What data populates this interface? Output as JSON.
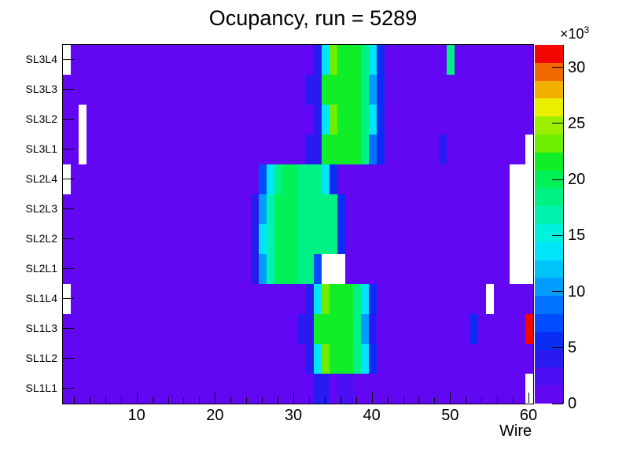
{
  "chart_data": {
    "type": "heatmap",
    "title": "Ocupancy, run = 5289",
    "xlabel": "Wire",
    "x_range": [
      1,
      60
    ],
    "x_major_ticks": [
      10,
      20,
      30,
      40,
      50,
      60
    ],
    "x_minor_tick_step": 2,
    "rows_top_to_bottom": [
      "SL3L4",
      "SL3L3",
      "SL3L2",
      "SL3L1",
      "SL2L4",
      "SL2L3",
      "SL2L2",
      "SL2L1",
      "SL1L4",
      "SL1L3",
      "SL1L2",
      "SL1L1"
    ],
    "z_axis": {
      "max": 32000,
      "tick_values": [
        0,
        5,
        10,
        15,
        20,
        25,
        30
      ],
      "multiplier_label": "×10",
      "multiplier_exp": "3"
    },
    "palette_20_levels_low_to_high": [
      "#6207f2",
      "#4a0ff2",
      "#2a1af2",
      "#0b2cf2",
      "#004cff",
      "#0072ff",
      "#009cff",
      "#00c4f8",
      "#00e6f8",
      "#00f2dc",
      "#00f2b0",
      "#00f284",
      "#00f058",
      "#0fee26",
      "#6fee00",
      "#9cee00",
      "#eaee00",
      "#f2b000",
      "#f26800",
      "#f20800"
    ],
    "background_value": 800,
    "empty_color": "#ffffff",
    "cell_runs_by_row": [
      {
        "label": "SL3L4",
        "runs": [
          [
            1,
            1,
            "empty"
          ],
          [
            33,
            33,
            4000
          ],
          [
            34,
            34,
            13600
          ],
          [
            35,
            35,
            23200
          ],
          [
            36,
            38,
            21600
          ],
          [
            39,
            39,
            18400
          ],
          [
            40,
            40,
            13600
          ],
          [
            41,
            41,
            5600
          ],
          [
            50,
            50,
            18400
          ]
        ]
      },
      {
        "label": "SL3L3",
        "runs": [
          [
            32,
            33,
            4000
          ],
          [
            34,
            38,
            21600
          ],
          [
            39,
            39,
            18400
          ],
          [
            40,
            40,
            10400
          ],
          [
            41,
            41,
            5600
          ]
        ]
      },
      {
        "label": "SL3L2",
        "runs": [
          [
            3,
            3,
            "empty"
          ],
          [
            33,
            33,
            4000
          ],
          [
            34,
            34,
            13600
          ],
          [
            35,
            35,
            23200
          ],
          [
            36,
            38,
            21600
          ],
          [
            39,
            39,
            18400
          ],
          [
            40,
            40,
            13600
          ],
          [
            41,
            41,
            5600
          ]
        ]
      },
      {
        "label": "SL3L1",
        "runs": [
          [
            3,
            3,
            "empty"
          ],
          [
            32,
            33,
            4000
          ],
          [
            34,
            38,
            21600
          ],
          [
            39,
            39,
            18400
          ],
          [
            40,
            40,
            8800
          ],
          [
            41,
            41,
            5600
          ],
          [
            49,
            49,
            4000
          ],
          [
            60,
            60,
            "empty"
          ]
        ]
      },
      {
        "label": "SL2L4",
        "runs": [
          [
            1,
            1,
            "empty"
          ],
          [
            26,
            26,
            7200
          ],
          [
            27,
            27,
            13600
          ],
          [
            28,
            28,
            18400
          ],
          [
            29,
            30,
            20000
          ],
          [
            31,
            33,
            18400
          ],
          [
            34,
            34,
            13600
          ],
          [
            35,
            35,
            5600
          ],
          [
            58,
            60,
            "empty"
          ]
        ]
      },
      {
        "label": "SL2L3",
        "runs": [
          [
            25,
            25,
            4000
          ],
          [
            26,
            26,
            10400
          ],
          [
            27,
            27,
            16800
          ],
          [
            28,
            30,
            20000
          ],
          [
            31,
            35,
            18400
          ],
          [
            36,
            36,
            5600
          ],
          [
            58,
            60,
            "empty"
          ]
        ]
      },
      {
        "label": "SL2L2",
        "runs": [
          [
            25,
            25,
            4000
          ],
          [
            26,
            26,
            13600
          ],
          [
            27,
            27,
            16800
          ],
          [
            28,
            30,
            20000
          ],
          [
            31,
            35,
            18400
          ],
          [
            36,
            36,
            5600
          ],
          [
            58,
            60,
            "empty"
          ]
        ]
      },
      {
        "label": "SL2L1",
        "runs": [
          [
            25,
            25,
            4000
          ],
          [
            26,
            26,
            10400
          ],
          [
            27,
            27,
            16800
          ],
          [
            28,
            30,
            20000
          ],
          [
            31,
            32,
            18400
          ],
          [
            33,
            33,
            7200
          ],
          [
            34,
            36,
            "empty"
          ],
          [
            58,
            60,
            "empty"
          ]
        ]
      },
      {
        "label": "SL1L4",
        "runs": [
          [
            1,
            1,
            "empty"
          ],
          [
            32,
            32,
            4000
          ],
          [
            33,
            33,
            13600
          ],
          [
            34,
            34,
            23200
          ],
          [
            35,
            37,
            21600
          ],
          [
            38,
            38,
            18400
          ],
          [
            39,
            39,
            13600
          ],
          [
            40,
            40,
            5600
          ],
          [
            55,
            55,
            "empty"
          ]
        ]
      },
      {
        "label": "SL1L3",
        "runs": [
          [
            31,
            32,
            4000
          ],
          [
            33,
            37,
            21600
          ],
          [
            38,
            38,
            18400
          ],
          [
            39,
            39,
            10400
          ],
          [
            40,
            40,
            4000
          ],
          [
            53,
            53,
            5600
          ],
          [
            60,
            60,
            31200
          ]
        ]
      },
      {
        "label": "SL1L2",
        "runs": [
          [
            32,
            32,
            4000
          ],
          [
            33,
            33,
            13600
          ],
          [
            34,
            34,
            23200
          ],
          [
            35,
            37,
            21600
          ],
          [
            38,
            38,
            18400
          ],
          [
            39,
            39,
            13600
          ],
          [
            40,
            40,
            5600
          ]
        ]
      },
      {
        "label": "SL1L1",
        "runs": [
          [
            33,
            34,
            4000
          ],
          [
            36,
            37,
            2400
          ],
          [
            60,
            60,
            "empty"
          ]
        ]
      }
    ]
  }
}
